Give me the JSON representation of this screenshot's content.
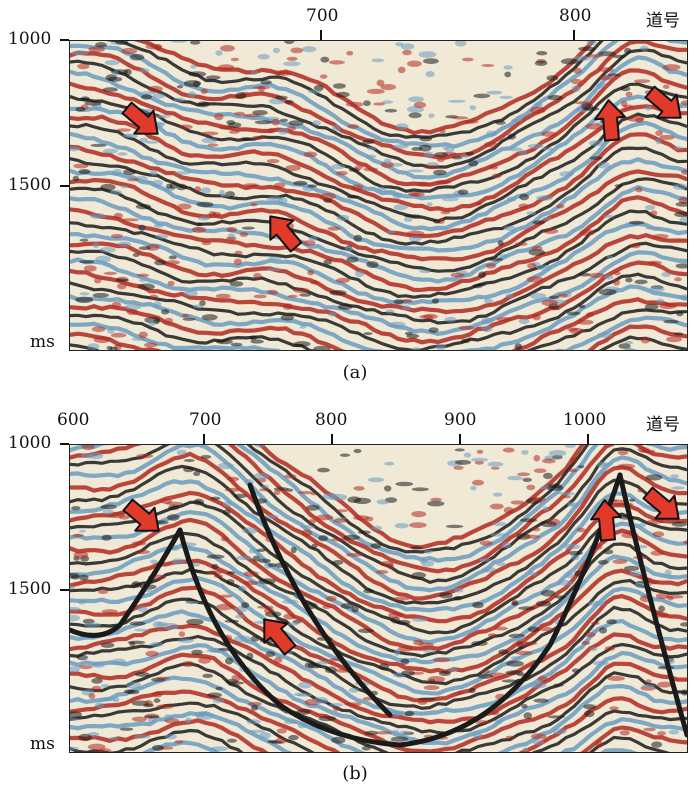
{
  "panels": [
    {
      "id": "a",
      "caption": "(a)",
      "trace_label": "道号",
      "x_ticks": [
        "700",
        "800"
      ],
      "y_ticks": [
        "1000",
        "1500"
      ],
      "y_unit": "ms"
    },
    {
      "id": "b",
      "caption": "(b)",
      "trace_label": "道号",
      "x_ticks": [
        "600",
        "700",
        "800",
        "900",
        "1000"
      ],
      "y_ticks": [
        "1000",
        "1500"
      ],
      "y_unit": "ms"
    }
  ],
  "colors": {
    "background": "#ffffff",
    "seismic_red": "#b0281f",
    "seismic_black": "#1a1a1a",
    "seismic_cream": "#efe9d6",
    "seismic_blue": "#6a9bc0",
    "arrow_fill": "#e23a2a",
    "arrow_stroke": "#111111"
  }
}
